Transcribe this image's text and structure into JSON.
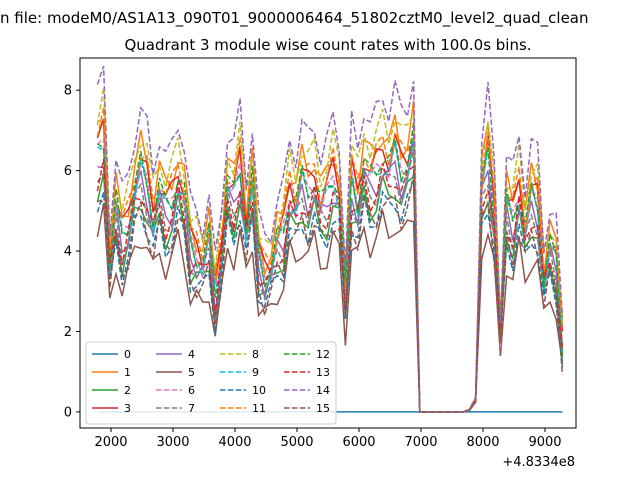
{
  "chart_data": {
    "type": "line",
    "suptitle": "n file: modeM0/AS1A13_090T01_9000006464_51802cztM0_level2_quad_clean",
    "title": "Quadrant 3 module wise count rates with 100.0s bins.",
    "xlabel": "",
    "ylabel": "",
    "x_offset_label": "+4.8334e8",
    "xlim": [
      1500,
      9500
    ],
    "ylim": [
      -0.4,
      8.8
    ],
    "xticks": [
      2000,
      3000,
      4000,
      5000,
      6000,
      7000,
      8000,
      9000
    ],
    "yticks": [
      0,
      2,
      4,
      6,
      8
    ],
    "legend_location": "lower-left",
    "legend_columns": 4,
    "base_x": [
      1780,
      1880,
      1980,
      2080,
      2180,
      2280,
      2380,
      2480,
      2580,
      2680,
      2780,
      2880,
      2980,
      3080,
      3180,
      3280,
      3380,
      3480,
      3580,
      3680,
      3780,
      3880,
      3980,
      4080,
      4180,
      4280,
      4380,
      4480,
      4580,
      4680,
      4780,
      4880,
      4980,
      5080,
      5180,
      5280,
      5380,
      5480,
      5580,
      5680,
      5780,
      5880,
      5980,
      6080,
      6180,
      6280,
      6380,
      6480,
      6580,
      6680,
      6780,
      6880,
      6980,
      7080,
      7180,
      7280,
      7380,
      7480,
      7580,
      7680,
      7780,
      7880,
      7980,
      8080,
      8180,
      8280,
      8380,
      8480,
      8580,
      8680,
      8780,
      8880,
      8980,
      9080,
      9180,
      9280
    ],
    "base_profile": [
      6.2,
      6.6,
      3.6,
      5.0,
      4.2,
      4.6,
      5.4,
      5.9,
      5.5,
      4.7,
      5.4,
      4.9,
      5.1,
      5.7,
      5.2,
      4.0,
      3.8,
      3.6,
      4.2,
      2.8,
      3.9,
      5.5,
      5.2,
      5.9,
      4.5,
      5.6,
      3.7,
      3.3,
      3.5,
      4.1,
      4.3,
      5.3,
      5.0,
      5.6,
      5.3,
      5.6,
      5.0,
      5.2,
      5.7,
      5.3,
      2.8,
      5.6,
      5.1,
      6.0,
      5.6,
      5.8,
      6.2,
      5.9,
      6.3,
      5.8,
      6.0,
      6.6,
      0.0,
      0.0,
      0.0,
      0.0,
      0.0,
      0.0,
      0.0,
      0.0,
      0.05,
      0.3,
      5.4,
      6.2,
      4.8,
      1.9,
      5.0,
      4.6,
      5.4,
      4.4,
      5.2,
      5.0,
      3.2,
      4.0,
      3.6,
      1.6
    ],
    "series": [
      {
        "name": "0",
        "color": "#1f77b4",
        "style": "solid",
        "scale": 0,
        "offset": 0,
        "values": []
      },
      {
        "name": "1",
        "color": "#ff7f0e",
        "style": "solid",
        "scale": 1.12,
        "offset": 0.05,
        "values": []
      },
      {
        "name": "2",
        "color": "#2ca02c",
        "style": "solid",
        "scale": 0.92,
        "offset": -0.15,
        "values": []
      },
      {
        "name": "3",
        "color": "#d62728",
        "style": "solid",
        "scale": 1.05,
        "offset": 0.1,
        "values": []
      },
      {
        "name": "4",
        "color": "#9467bd",
        "style": "solid",
        "scale": 0.98,
        "offset": -0.05,
        "values": []
      },
      {
        "name": "5",
        "color": "#8c564b",
        "style": "solid",
        "scale": 0.8,
        "offset": -0.3,
        "values": []
      },
      {
        "name": "6",
        "color": "#e377c2",
        "style": "dashed",
        "scale": 1.02,
        "offset": 0.0,
        "values": []
      },
      {
        "name": "7",
        "color": "#7f7f7f",
        "style": "dashed",
        "scale": 0.96,
        "offset": -0.1,
        "values": []
      },
      {
        "name": "8",
        "color": "#bcbd22",
        "style": "dashed",
        "scale": 1.15,
        "offset": 0.15,
        "values": []
      },
      {
        "name": "9",
        "color": "#17becf",
        "style": "dashed",
        "scale": 1.0,
        "offset": 0.05,
        "values": []
      },
      {
        "name": "10",
        "color": "#1f77b4",
        "style": "dashed",
        "scale": 0.88,
        "offset": -0.2,
        "values": []
      },
      {
        "name": "11",
        "color": "#ff7f0e",
        "style": "dashed",
        "scale": 1.08,
        "offset": 0.1,
        "values": []
      },
      {
        "name": "12",
        "color": "#2ca02c",
        "style": "dashed",
        "scale": 1.04,
        "offset": 0.0,
        "values": []
      },
      {
        "name": "13",
        "color": "#d62728",
        "style": "dashed",
        "scale": 0.95,
        "offset": -0.05,
        "values": []
      },
      {
        "name": "14",
        "color": "#9467bd",
        "style": "dashed",
        "scale": 1.24,
        "offset": 0.2,
        "values": []
      },
      {
        "name": "15",
        "color": "#8c564b",
        "style": "dashed",
        "scale": 0.86,
        "offset": -0.1,
        "values": []
      }
    ]
  }
}
